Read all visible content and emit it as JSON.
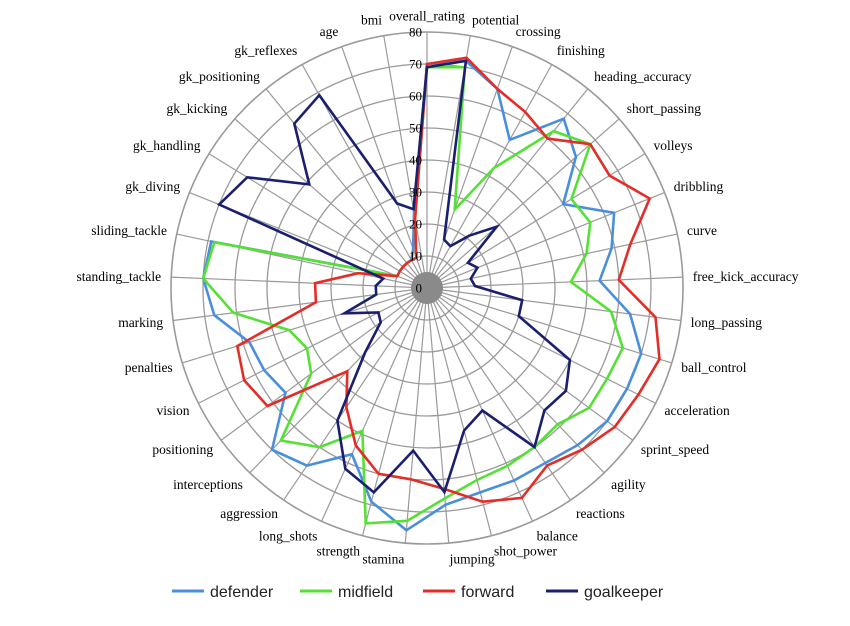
{
  "chart_data": {
    "type": "radar",
    "title": "",
    "axes": [
      "overall_rating",
      "potential",
      "crossing",
      "finishing",
      "heading_accuracy",
      "short_passing",
      "volleys",
      "dribbling",
      "curve",
      "free_kick_accuracy",
      "long_passing",
      "ball_control",
      "acceleration",
      "sprint_speed",
      "agility",
      "reactions",
      "balance",
      "shot_power",
      "jumping",
      "stamina",
      "strength",
      "long_shots",
      "aggression",
      "interceptions",
      "positioning",
      "vision",
      "penalties",
      "marking",
      "standing_tackle",
      "sliding_tackle",
      "gk_diving",
      "gk_handling",
      "gk_kicking",
      "gk_positioning",
      "gk_reflexes",
      "age",
      "bmi"
    ],
    "tick_labels": [
      "0",
      "10",
      "20",
      "30",
      "40",
      "50",
      "60",
      "70",
      "80"
    ],
    "rlim": [
      0,
      80
    ],
    "legend_position": "bottom",
    "series": [
      {
        "name": "defender",
        "color": "#4a8fdc",
        "values": [
          70,
          72,
          66,
          53,
          68,
          62,
          50,
          63,
          59,
          54,
          64,
          70,
          70,
          70,
          68,
          66,
          66,
          66,
          68,
          76,
          69,
          57,
          67,
          70,
          55,
          57,
          58,
          67,
          70,
          69,
          10,
          10,
          10,
          10,
          10,
          13,
          24
        ]
      },
      {
        "name": "midfield",
        "color": "#55e035",
        "values": [
          69,
          70,
          26,
          43,
          63,
          68,
          53,
          55,
          51,
          45,
          58,
          64,
          63,
          63,
          59,
          60,
          61,
          62,
          66,
          73,
          76,
          49,
          60,
          66,
          45,
          42,
          45,
          61,
          70,
          68,
          10,
          10,
          10,
          10,
          10,
          10,
          22
        ]
      },
      {
        "name": "forward",
        "color": "#e52d28",
        "values": [
          70,
          73,
          66,
          63,
          60,
          68,
          67,
          75,
          65,
          60,
          72,
          76,
          74,
          73,
          70,
          67,
          72,
          69,
          63,
          60,
          60,
          54,
          45,
          36,
          62,
          64,
          62,
          35,
          35,
          22,
          10,
          10,
          10,
          10,
          10,
          10,
          22
        ]
      },
      {
        "name": "goalkeeper",
        "color": "#1a1f6e",
        "values": [
          69,
          72,
          16,
          15,
          21,
          29,
          15,
          17,
          14,
          15,
          30,
          30,
          50,
          54,
          53,
          60,
          42,
          46,
          64,
          51,
          66,
          62,
          50,
          28,
          18,
          17,
          27,
          16,
          16,
          14,
          70,
          66,
          49,
          66,
          69,
          28,
          25
        ]
      }
    ]
  }
}
